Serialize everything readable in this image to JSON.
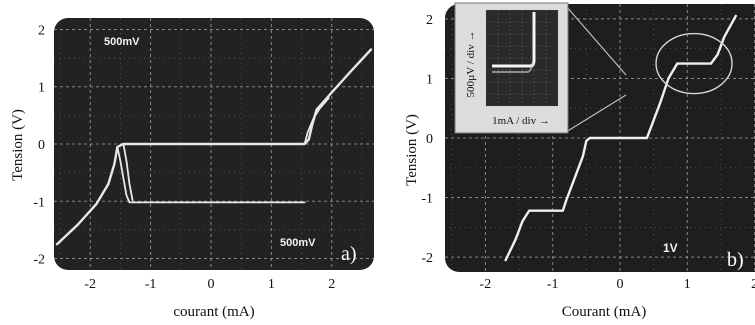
{
  "chart_data": [
    {
      "type": "line",
      "panel_label": "a)",
      "xlabel": "courant (mA)",
      "ylabel": "Tension (V)",
      "x_ticks": [
        -2,
        -1,
        0,
        1,
        2
      ],
      "y_ticks": [
        -2,
        -1,
        0,
        1,
        2
      ],
      "xlim": [
        -2.6,
        2.7
      ],
      "ylim": [
        -2.2,
        2.2
      ],
      "grid": true,
      "scope_labels": [
        "500mV",
        "500mV"
      ],
      "colors": {
        "screen": "#222222",
        "trace": "#e8e8e8",
        "grid": "#9a9a9a"
      },
      "series": [
        {
          "values": [
            [
              -2.55,
              -1.75
            ],
            [
              -2.2,
              -1.4
            ],
            [
              -1.9,
              -1.05
            ],
            [
              -1.7,
              -0.7
            ],
            [
              -1.6,
              -0.35
            ],
            [
              -1.55,
              -0.05
            ],
            [
              -1.45,
              0.0
            ],
            [
              1.55,
              0.0
            ],
            [
              1.62,
              0.08
            ],
            [
              1.68,
              0.35
            ],
            [
              1.75,
              0.6
            ],
            [
              1.85,
              0.72
            ],
            [
              2.0,
              0.9
            ],
            [
              2.3,
              1.25
            ],
            [
              2.65,
              1.65
            ]
          ]
        },
        {
          "values": [
            [
              -1.55,
              -0.05
            ],
            [
              -1.5,
              -0.3
            ],
            [
              -1.45,
              -0.6
            ],
            [
              -1.4,
              -0.9
            ],
            [
              -1.35,
              -1.02
            ],
            [
              1.55,
              -1.02
            ]
          ]
        },
        {
          "values": [
            [
              -1.45,
              0.0
            ],
            [
              -1.4,
              -0.3
            ],
            [
              -1.35,
              -0.7
            ],
            [
              -1.3,
              -0.98
            ]
          ]
        },
        {
          "values": [
            [
              1.55,
              0.0
            ],
            [
              1.6,
              0.2
            ],
            [
              1.7,
              0.45
            ],
            [
              1.8,
              0.62
            ],
            [
              1.95,
              0.8
            ]
          ]
        }
      ]
    },
    {
      "type": "line",
      "panel_label": "b)",
      "xlabel": "Courant (mA)",
      "ylabel": "Tension (V)",
      "x_ticks": [
        -2,
        -1,
        0,
        1,
        2
      ],
      "y_ticks": [
        -2,
        -1,
        0,
        1,
        2
      ],
      "xlim": [
        -2.6,
        2.6
      ],
      "ylim": [
        -2.25,
        2.25
      ],
      "grid": true,
      "scope_labels": [
        "1V"
      ],
      "colors": {
        "screen": "#1e1e1e",
        "trace": "#f0f0f0",
        "grid": "#9a9a9a",
        "inset_bg": "#dcdcdc"
      },
      "series": [
        {
          "values": [
            [
              -1.7,
              -2.05
            ],
            [
              -1.55,
              -1.7
            ],
            [
              -1.45,
              -1.4
            ],
            [
              -1.35,
              -1.22
            ],
            [
              -0.85,
              -1.22
            ],
            [
              -0.8,
              -1.05
            ],
            [
              -0.65,
              -0.6
            ],
            [
              -0.55,
              -0.3
            ],
            [
              -0.5,
              -0.05
            ],
            [
              -0.45,
              0.0
            ],
            [
              0.4,
              0.0
            ],
            [
              0.5,
              0.3
            ],
            [
              0.6,
              0.6
            ],
            [
              0.72,
              1.0
            ],
            [
              0.85,
              1.25
            ],
            [
              1.35,
              1.25
            ],
            [
              1.45,
              1.4
            ],
            [
              1.55,
              1.7
            ],
            [
              1.72,
              2.05
            ]
          ]
        }
      ],
      "inset": {
        "x_label": "1mA / div →",
        "y_label": "500µV / div →",
        "zoom_center": [
          1.1,
          1.25
        ]
      }
    }
  ]
}
